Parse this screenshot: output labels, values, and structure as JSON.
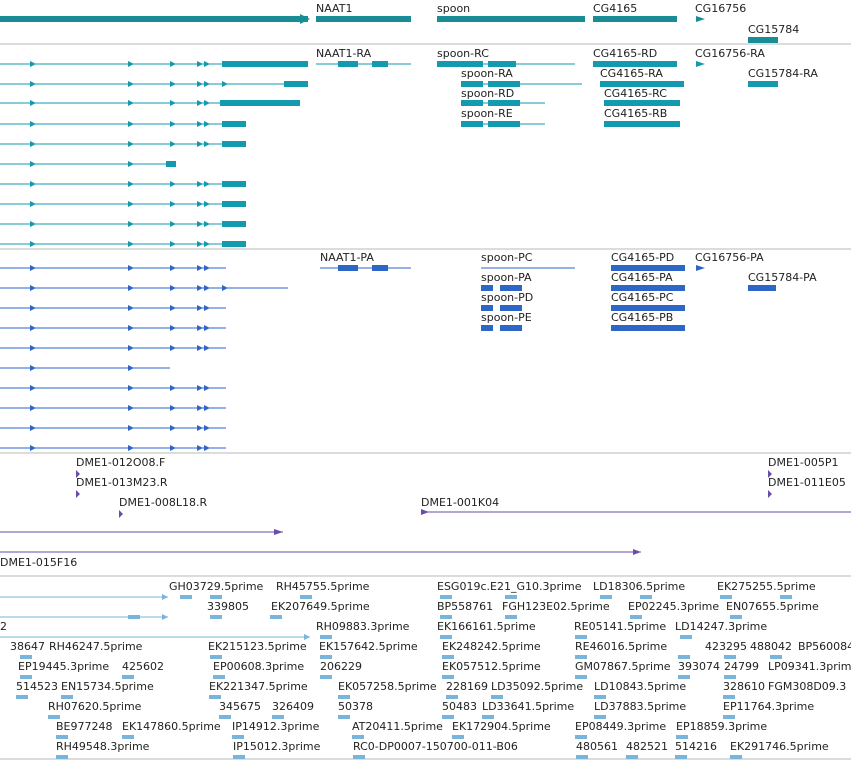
{
  "colors": {
    "track_gene": "#1a8c96",
    "track_transcript": "#139aaf",
    "track_cds": "#2e66c8",
    "track_clone": "#6a4da8",
    "track_est": "#78b4dc",
    "divider": "#b8b8b8"
  },
  "track_gene": {
    "labels": [
      "NAAT1",
      "spoon",
      "CG4165",
      "CG16756",
      "CG15784"
    ]
  },
  "track_transcripts": {
    "labels": [
      "NAAT1-RA",
      "spoon-RC",
      "CG4165-RD",
      "CG16756-RA",
      "spoon-RA",
      "CG4165-RA",
      "CG15784-RA",
      "spoon-RD",
      "CG4165-RC",
      "spoon-RE",
      "CG4165-RB"
    ]
  },
  "track_cds": {
    "labels": [
      "NAAT1-PA",
      "spoon-PC",
      "CG4165-PD",
      "CG16756-PA",
      "spoon-PA",
      "CG4165-PA",
      "CG15784-PA",
      "spoon-PD",
      "CG4165-PC",
      "spoon-PE",
      "CG4165-PB"
    ]
  },
  "track_clones": {
    "labels": [
      "DME1-012O08.F",
      "DME1-005P1",
      "DME1-013M23.R",
      "DME1-011E05",
      "DME1-008L18.R",
      "DME1-001K04",
      "DME1-015F16"
    ]
  },
  "track_ests": {
    "labels": [
      "GH03729.5prime",
      "RH45755.5prime",
      "ESG019c.E21_G10.3prime",
      "LD18306.5prime",
      "EK275255.5prime",
      "339805",
      "EK207649.5prime",
      "BP558761",
      "FGH123E02.5prime",
      "EP02245.3prime",
      "EN07655.5prime",
      "2",
      "RH09883.3prime",
      "EK166161.5prime",
      "RE05141.5prime",
      "LD14247.3prime",
      "38647",
      "RH46247.5prime",
      "EK215123.5prime",
      "EK157642.5prime",
      "EK248242.5prime",
      "RE46016.5prime",
      "423295",
      "488042",
      "BP560084",
      "EP19445.3prime",
      "425602",
      "EP00608.3prime",
      "206229",
      "EK057512.5prime",
      "GM07867.5prime",
      "393074",
      "24799",
      "LP09341.3prime",
      "514523",
      "EN15734.5prime",
      "EK221347.5prime",
      "EK057258.5prime",
      "228169",
      "LD35092.5prime",
      "LD10843.5prime",
      "328610",
      "FGM308D09.3",
      "RH07620.5prime",
      "345675",
      "326409",
      "50378",
      "50483",
      "LD33641.5prime",
      "LD37883.5prime",
      "EP11764.3prime",
      "BE977248",
      "EK147860.5prime",
      "IP14912.3prime",
      "AT20411.5prime",
      "EK172904.5prime",
      "EP08449.3prime",
      "EP18859.3prime",
      "RH49548.3prime",
      "IP15012.3prime",
      "RC0-DP0007-150700-011-B06",
      "480561",
      "482521",
      "514216",
      "EK291746.5prime"
    ]
  }
}
